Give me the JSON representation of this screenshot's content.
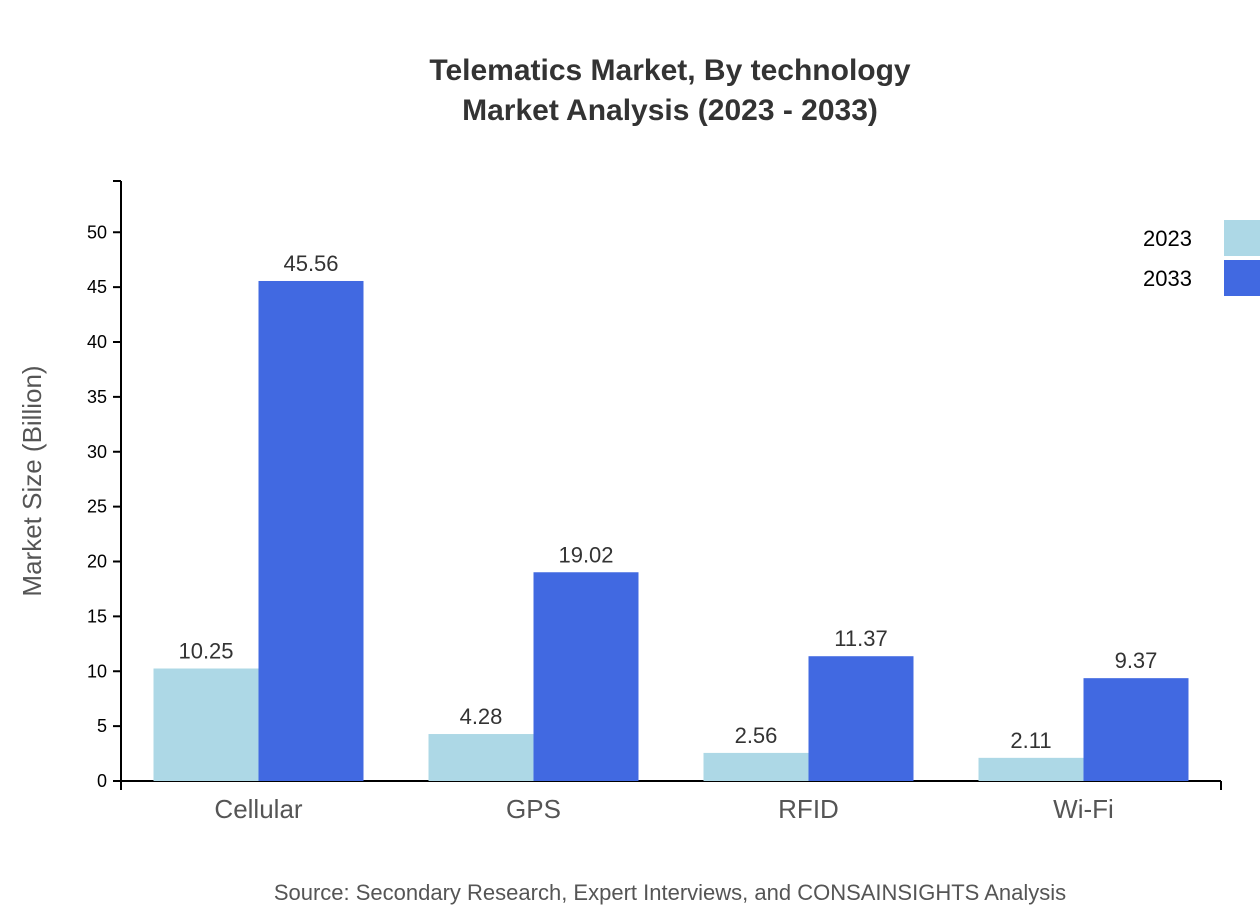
{
  "chart_data": {
    "type": "bar",
    "title": "Telematics Market, By technology",
    "subtitle": "Market Analysis (2023 - 2033)",
    "xlabel": "",
    "ylabel": "Market Size (Billion)",
    "categories": [
      "Cellular",
      "GPS",
      "RFID",
      "Wi-Fi"
    ],
    "series": [
      {
        "name": "2023",
        "color": "#add8e6",
        "values": [
          10.25,
          4.28,
          2.56,
          2.11
        ]
      },
      {
        "name": "2033",
        "color": "#4169e1",
        "values": [
          45.56,
          19.02,
          11.37,
          9.37
        ]
      }
    ],
    "ylim": [
      0,
      54.67
    ],
    "yticks": [
      0,
      5,
      10,
      15,
      20,
      25,
      30,
      35,
      40,
      45,
      50
    ],
    "grid": false,
    "legend": "top-right",
    "source": "Source: Secondary Research, Expert Interviews, and CONSAINSIGHTS Analysis"
  }
}
